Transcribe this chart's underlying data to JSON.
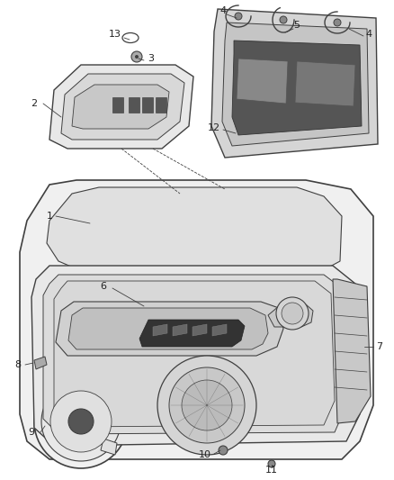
{
  "background_color": "#ffffff",
  "line_color": "#404040",
  "text_color": "#222222",
  "fig_width": 4.38,
  "fig_height": 5.33,
  "dpi": 100
}
